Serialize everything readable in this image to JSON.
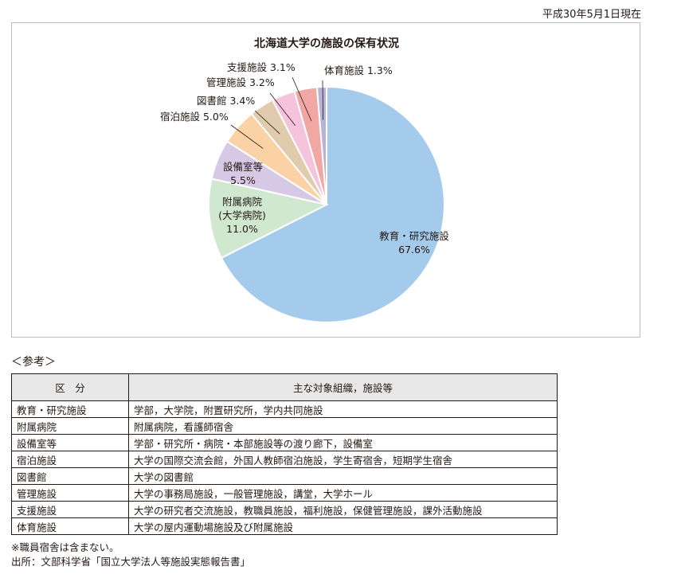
{
  "as_of": "平成30年5月1日現在",
  "chart_data": {
    "type": "pie",
    "title": "北海道大学の施設の保有状況",
    "unit": "%",
    "slices": [
      {
        "label": "教育・研究施設",
        "value": 67.6,
        "color": "#a4cbeb",
        "label_lines": [
          "教育・研究施設",
          "67.6%"
        ]
      },
      {
        "label": "附属病院（大学病院）",
        "value": 11.0,
        "color": "#cfe8cf",
        "label_lines": [
          "附属病院",
          "(大学病院)",
          "11.0%"
        ]
      },
      {
        "label": "設備室等",
        "value": 5.5,
        "color": "#d7c9e6",
        "label_lines": [
          "設備室等",
          "5.5%"
        ]
      },
      {
        "label": "宿泊施設",
        "value": 5.0,
        "color": "#fbd1a6",
        "label_lines": [
          "宿泊施設 5.0%"
        ]
      },
      {
        "label": "図書館",
        "value": 3.4,
        "color": "#e0ccad",
        "label_lines": [
          "図書館 3.4%"
        ]
      },
      {
        "label": "管理施設",
        "value": 3.2,
        "color": "#f6c3dc",
        "label_lines": [
          "管理施設 3.2%"
        ]
      },
      {
        "label": "支援施設",
        "value": 3.1,
        "color": "#f1a7a3",
        "label_lines": [
          "支援施設 3.1%"
        ]
      },
      {
        "label": "体育施設",
        "value": 1.3,
        "color": "#b7b3d6",
        "label_lines": [
          "体育施設 1.3%"
        ]
      }
    ]
  },
  "reference": {
    "heading": "＜参考＞",
    "columns": [
      "区　分",
      "主な対象組織，施設等"
    ],
    "rows": [
      [
        "教育・研究施設",
        "学部，大学院，附置研究所，学内共同施設"
      ],
      [
        "附属病院",
        "附属病院，看護師宿舎"
      ],
      [
        "設備室等",
        "学部・研究所・病院・本部施設等の渡り廊下，設備室"
      ],
      [
        "宿泊施設",
        "大学の国際交流会館，外国人教師宿泊施設，学生寄宿舎，短期学生宿舎"
      ],
      [
        "図書館",
        "大学の図書館"
      ],
      [
        "管理施設",
        "大学の事務局施設，一般管理施設，講堂，大学ホール"
      ],
      [
        "支援施設",
        "大学の研究者交流施設，教職員施設，福利施設，保健管理施設，課外活動施設"
      ],
      [
        "体育施設",
        "大学の屋内運動場施設及び附属施設"
      ]
    ]
  },
  "notes": [
    "※職員宿舎は含まない。",
    "出所：文部科学省「国立大学法人等施設実態報告書」"
  ]
}
